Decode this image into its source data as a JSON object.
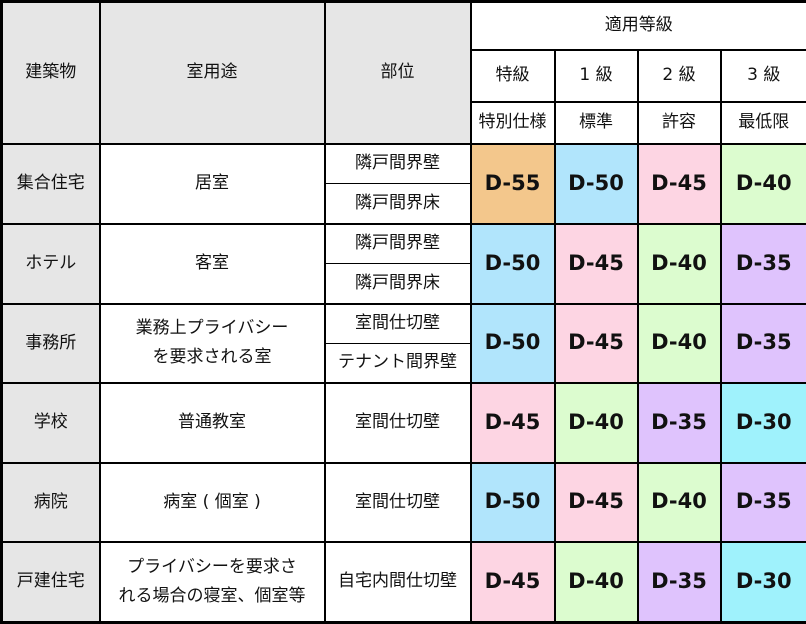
{
  "header": {
    "building": "建築物",
    "room_use": "室用途",
    "part": "部位",
    "applicable_grade": "適用等級",
    "grades": [
      {
        "label": "特級",
        "desc": "特別仕様"
      },
      {
        "label": "1 級",
        "desc": "標準"
      },
      {
        "label": "2 級",
        "desc": "許容"
      },
      {
        "label": "3 級",
        "desc": "最低限"
      }
    ]
  },
  "colors": {
    "D-55": "#f3c78c",
    "D-50": "#b1e5fc",
    "D-45": "#fdd5e3",
    "D-40": "#dcfccf",
    "D-35": "#dfc3fd",
    "D-30": "#9ff2fc"
  },
  "rows": [
    {
      "building": "集合住宅",
      "use": "居室",
      "parts": [
        "隣戸間界壁",
        "隣戸間界床"
      ],
      "grades": [
        "D-55",
        "D-50",
        "D-45",
        "D-40"
      ]
    },
    {
      "building": "ホテル",
      "use": "客室",
      "parts": [
        "隣戸間界壁",
        "隣戸間界床"
      ],
      "grades": [
        "D-50",
        "D-45",
        "D-40",
        "D-35"
      ]
    },
    {
      "building": "事務所",
      "use": "業務上プライバシー\nを要求される室",
      "parts": [
        "室間仕切壁",
        "テナント間界壁"
      ],
      "grades": [
        "D-50",
        "D-45",
        "D-40",
        "D-35"
      ]
    },
    {
      "building": "学校",
      "use": "普通教室",
      "parts": [
        "室間仕切壁"
      ],
      "grades": [
        "D-45",
        "D-40",
        "D-35",
        "D-30"
      ]
    },
    {
      "building": "病院",
      "use": "病室 ( 個室 )",
      "parts": [
        "室間仕切壁"
      ],
      "grades": [
        "D-50",
        "D-45",
        "D-40",
        "D-35"
      ]
    },
    {
      "building": "戸建住宅",
      "use": "プライバシーを要求さ\nれる場合の寝室、個室等",
      "parts": [
        "自宅内間仕切壁"
      ],
      "grades": [
        "D-45",
        "D-40",
        "D-35",
        "D-30"
      ]
    }
  ]
}
